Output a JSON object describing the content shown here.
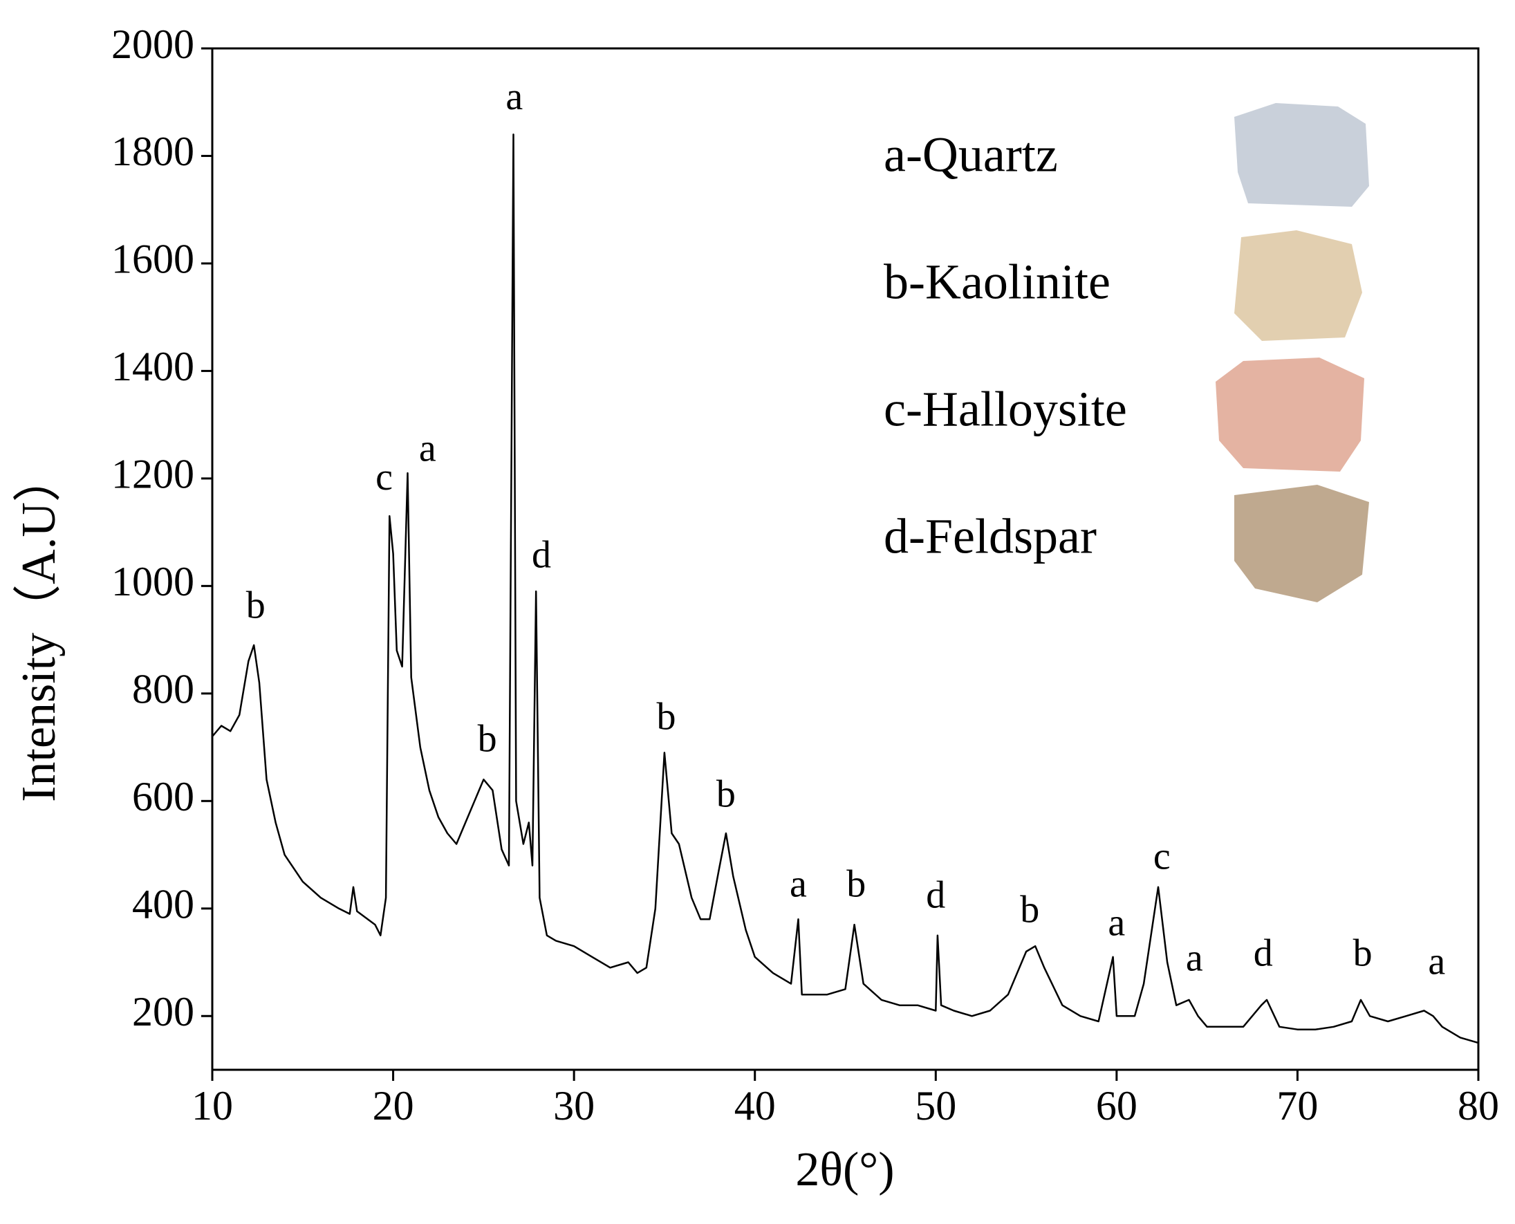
{
  "chart_data": {
    "type": "line",
    "x_label": "2θ(°)",
    "y_label": "Intensity（A.U）",
    "xlim": [
      10,
      80
    ],
    "xticks": [
      10,
      20,
      30,
      40,
      50,
      60,
      70,
      80
    ],
    "ylim": [
      100,
      2000
    ],
    "yticks": [
      200,
      400,
      600,
      800,
      1000,
      1200,
      1400,
      1600,
      1800,
      2000
    ],
    "x": [
      10,
      10.5,
      11,
      11.5,
      12,
      12.3,
      12.6,
      13,
      13.5,
      14,
      15,
      16,
      17,
      17.6,
      17.8,
      18,
      19,
      19.3,
      19.6,
      19.8,
      20.0,
      20.2,
      20.5,
      20.8,
      21.0,
      21.5,
      22,
      22.5,
      23,
      23.5,
      24,
      24.5,
      25,
      25.5,
      26,
      26.4,
      26.65,
      26.8,
      27.2,
      27.5,
      27.7,
      27.9,
      28.1,
      28.5,
      29,
      30,
      31,
      32,
      33,
      33.5,
      34,
      34.5,
      35,
      35.4,
      35.8,
      36.5,
      37,
      37.5,
      38,
      38.4,
      38.8,
      39.5,
      40,
      41,
      42,
      42.4,
      42.6,
      43,
      44,
      45,
      45.5,
      46,
      47,
      48,
      49,
      50,
      50.1,
      50.3,
      51,
      52,
      53,
      54,
      55,
      55.5,
      56,
      57,
      58,
      59,
      59.8,
      60,
      61,
      61.5,
      62.3,
      62.8,
      63.3,
      64,
      64.5,
      65,
      66,
      67,
      68,
      68.3,
      69,
      70,
      71,
      72,
      73,
      73.5,
      74,
      75,
      76,
      77,
      77.5,
      78,
      79,
      80
    ],
    "series": [
      {
        "color": "#000000",
        "values": [
          720,
          740,
          730,
          760,
          860,
          890,
          820,
          640,
          560,
          500,
          450,
          420,
          400,
          390,
          440,
          395,
          370,
          350,
          420,
          1130,
          1060,
          880,
          850,
          1210,
          830,
          700,
          620,
          570,
          540,
          520,
          560,
          600,
          640,
          620,
          510,
          480,
          1840,
          600,
          520,
          560,
          480,
          990,
          420,
          350,
          340,
          330,
          310,
          290,
          300,
          280,
          290,
          400,
          690,
          540,
          520,
          420,
          380,
          380,
          470,
          540,
          460,
          360,
          310,
          280,
          260,
          380,
          240,
          240,
          240,
          250,
          370,
          260,
          230,
          220,
          220,
          210,
          350,
          220,
          210,
          200,
          210,
          240,
          320,
          330,
          290,
          220,
          200,
          190,
          310,
          200,
          200,
          260,
          440,
          300,
          220,
          230,
          200,
          180,
          180,
          180,
          220,
          230,
          180,
          175,
          175,
          180,
          190,
          230,
          200,
          190,
          200,
          210,
          200,
          180,
          160,
          150
        ]
      }
    ],
    "annotations": [
      {
        "text": "b",
        "x": 12.4,
        "y": 957
      },
      {
        "text": "c",
        "x": 19.5,
        "y": 1196
      },
      {
        "text": "a",
        "x": 21.9,
        "y": 1249
      },
      {
        "text": "b",
        "x": 25.2,
        "y": 709
      },
      {
        "text": "a",
        "x": 26.7,
        "y": 1903
      },
      {
        "text": "d",
        "x": 28.2,
        "y": 1051
      },
      {
        "text": "b",
        "x": 35.1,
        "y": 750
      },
      {
        "text": "b",
        "x": 38.4,
        "y": 606
      },
      {
        "text": "a",
        "x": 42.4,
        "y": 439
      },
      {
        "text": "b",
        "x": 45.6,
        "y": 439
      },
      {
        "text": "d",
        "x": 50.0,
        "y": 418
      },
      {
        "text": "b",
        "x": 55.2,
        "y": 391
      },
      {
        "text": "a",
        "x": 60.0,
        "y": 367
      },
      {
        "text": "c",
        "x": 62.5,
        "y": 490
      },
      {
        "text": "a",
        "x": 64.3,
        "y": 301
      },
      {
        "text": "d",
        "x": 68.1,
        "y": 310
      },
      {
        "text": "b",
        "x": 73.6,
        "y": 310
      },
      {
        "text": "a",
        "x": 77.7,
        "y": 295
      }
    ],
    "legend": [
      {
        "label": "a-Quartz",
        "color": "#c9d0da"
      },
      {
        "label": "b-Kaolinite",
        "color": "#e2cfb0"
      },
      {
        "label": "c-Halloysite",
        "color": "#e4b3a2"
      },
      {
        "label": "d-Feldspar",
        "color": "#bfa98f"
      }
    ]
  }
}
